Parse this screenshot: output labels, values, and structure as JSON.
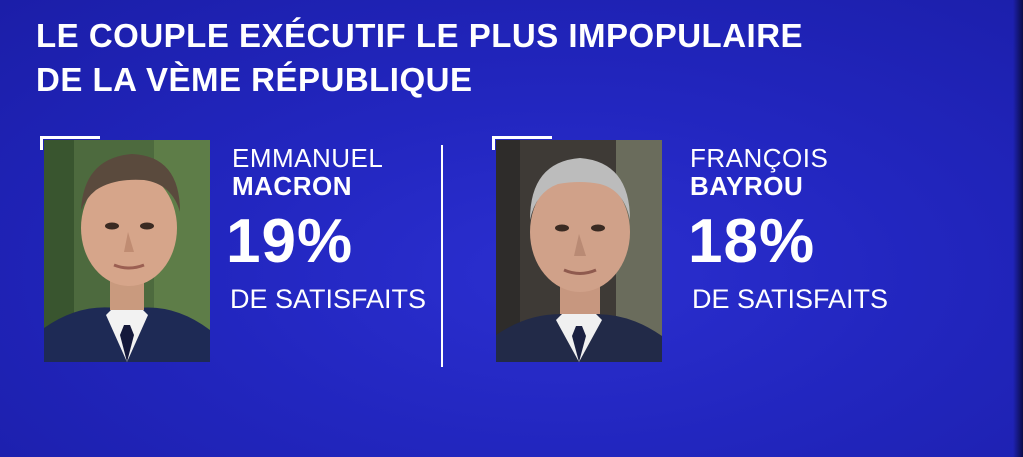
{
  "headline": {
    "line1": "LE COUPLE EXÉCUTIF LE PLUS IMPOPULAIRE",
    "line2": "DE LA VÈME RÉPUBLIQUE"
  },
  "people": [
    {
      "first_name": "EMMANUEL",
      "last_name": "MACRON",
      "percent": "19%",
      "label": "DE SATISFAITS"
    },
    {
      "first_name": "FRANÇOIS",
      "last_name": "BAYROU",
      "percent": "18%",
      "label": "DE SATISFAITS"
    }
  ],
  "colors": {
    "background": "#2226bf",
    "text": "#ffffff"
  }
}
